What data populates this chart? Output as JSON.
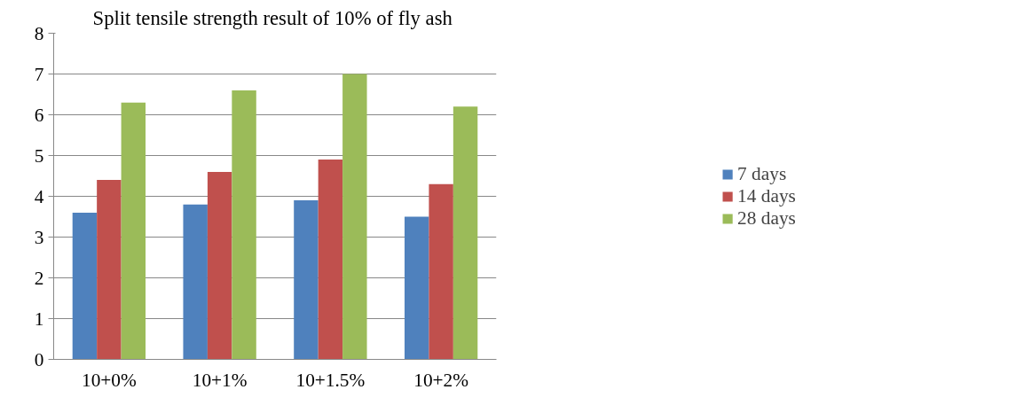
{
  "chart_data": {
    "type": "bar",
    "title": "Split tensile  strength result of 10% of fly ash",
    "categories": [
      "10+0%",
      "10+1%",
      "10+1.5%",
      "10+2%"
    ],
    "series": [
      {
        "name": "7 days",
        "color": "#4f81bd",
        "values": [
          3.6,
          3.8,
          3.9,
          3.5
        ]
      },
      {
        "name": "14 days",
        "color": "#c0504d",
        "values": [
          4.4,
          4.6,
          4.9,
          4.3
        ]
      },
      {
        "name": "28 days",
        "color": "#9bbb59",
        "values": [
          6.3,
          6.6,
          7.0,
          6.2
        ]
      }
    ],
    "ylim": [
      0,
      8
    ],
    "yticks": [
      0,
      1,
      2,
      3,
      4,
      5,
      6,
      7,
      8
    ],
    "grid": "y",
    "legend": "right"
  }
}
